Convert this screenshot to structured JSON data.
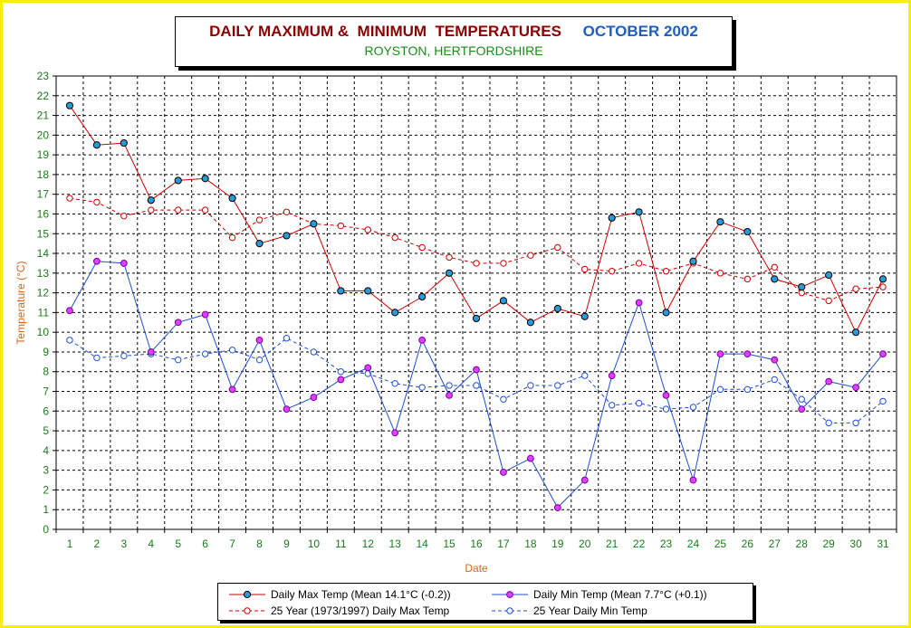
{
  "title": {
    "main": "DAILY MAXIMUM &  MINIMUM  TEMPERATURES",
    "month": "OCTOBER 2002",
    "location": "ROYSTON, HERTFORDSHIRE"
  },
  "colors": {
    "max": "#cc0000",
    "min": "#1f4fcc",
    "marker_fill": "#2a9bd8",
    "min_marker_fill": "#e040ff",
    "avg_max": "#cc0000",
    "avg_min": "#1f4fcc",
    "axis_label": "#d2691e",
    "tick_label": "#1a7a1a",
    "grid": "#000000",
    "border": "#f5f000"
  },
  "chart_data": {
    "type": "line",
    "xlabel": "Date",
    "ylabel": "Temperature (°C)",
    "ylim": [
      0,
      23
    ],
    "grid": true,
    "legend_placement": "bottom",
    "x": [
      1,
      2,
      3,
      4,
      5,
      6,
      7,
      8,
      9,
      10,
      11,
      12,
      13,
      14,
      15,
      16,
      17,
      18,
      19,
      20,
      21,
      22,
      23,
      24,
      25,
      26,
      27,
      28,
      29,
      30,
      31
    ],
    "series": [
      {
        "name": "Daily Max Temp (Mean 14.1°C (-0.2))",
        "key": "max",
        "style": "solid",
        "values": [
          21.5,
          19.5,
          19.6,
          16.7,
          17.7,
          17.8,
          16.8,
          14.5,
          14.9,
          15.5,
          12.1,
          12.1,
          11.0,
          11.8,
          13.0,
          10.7,
          11.6,
          10.5,
          11.2,
          10.8,
          15.8,
          16.1,
          11.0,
          13.6,
          15.6,
          15.1,
          12.7,
          12.3,
          12.9,
          10.0,
          12.7
        ]
      },
      {
        "name": "Daily Min Temp (Mean 7.7°C (+0.1))",
        "key": "min",
        "style": "solid",
        "values": [
          11.1,
          13.6,
          13.5,
          9.0,
          10.5,
          10.9,
          7.1,
          9.6,
          6.1,
          6.7,
          7.6,
          8.2,
          4.9,
          9.6,
          6.8,
          8.1,
          2.9,
          3.6,
          1.1,
          2.5,
          7.8,
          11.5,
          6.8,
          2.5,
          8.9,
          8.9,
          8.6,
          6.1,
          7.5,
          7.2,
          8.9
        ]
      },
      {
        "name": "25 Year (1973/1997) Daily Max Temp",
        "key": "avg_max",
        "style": "dashed",
        "values": [
          16.8,
          16.6,
          15.9,
          16.2,
          16.2,
          16.2,
          14.8,
          15.7,
          16.1,
          15.5,
          15.4,
          15.2,
          14.8,
          14.3,
          13.8,
          13.5,
          13.5,
          13.9,
          14.3,
          13.2,
          13.1,
          13.5,
          13.1,
          13.5,
          13.0,
          12.7,
          13.3,
          12.0,
          11.6,
          12.2,
          12.3
        ]
      },
      {
        "name": "25 Year Daily Min Temp",
        "key": "avg_min",
        "style": "dashed",
        "values": [
          9.6,
          8.7,
          8.8,
          8.9,
          8.6,
          8.9,
          9.1,
          8.6,
          9.7,
          9.0,
          8.0,
          7.9,
          7.4,
          7.2,
          7.3,
          7.3,
          6.6,
          7.3,
          7.3,
          7.8,
          6.3,
          6.4,
          6.1,
          6.2,
          7.1,
          7.1,
          7.6,
          6.6,
          5.4,
          5.4,
          6.5
        ]
      }
    ]
  }
}
